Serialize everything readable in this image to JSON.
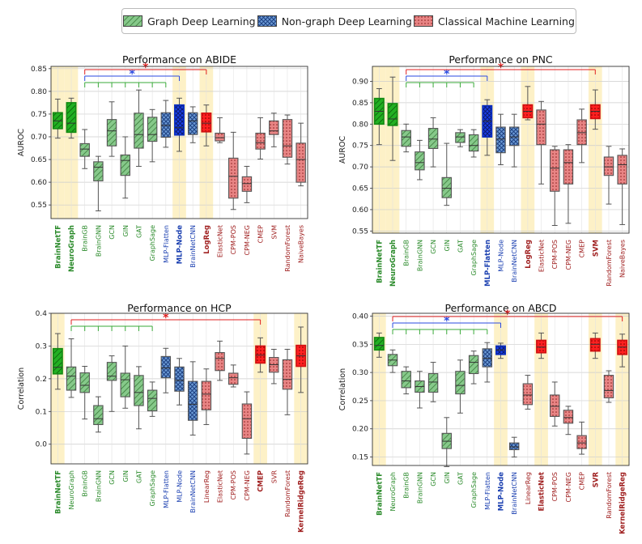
{
  "legend": {
    "graph": "Graph Deep Learning",
    "nongraph": "Non-graph Deep Learning",
    "classical": "Classical Machine Learning"
  },
  "colors": {
    "graph": "#86c98a",
    "graph_hi": "#22b022",
    "nongraph": "#6c9bd6",
    "nongraph_hi": "#1a3fe6",
    "classical": "#e88484",
    "classical_hi": "#ff2020",
    "label_graph": "#2a8a2a",
    "label_nongraph": "#1a3fb0",
    "label_classical": "#a02020",
    "highlight": "#fdf1c7",
    "bracket_green": "#3aaa3a",
    "bracket_blue": "#2a4ae0",
    "bracket_red": "#e02020"
  },
  "chart_data": [
    {
      "type": "box",
      "title": "Performance on ABIDE",
      "ylabel": "AUROC",
      "ylim": [
        0.52,
        0.855
      ],
      "yticks": [
        0.55,
        0.6,
        0.65,
        0.7,
        0.75,
        0.8,
        0.85
      ],
      "tick_format": 2,
      "categories": [
        "BrainNetTF",
        "NeuroGraph",
        "BrainGB",
        "BrainGNN",
        "GCN",
        "GIN",
        "GAT",
        "GraphSage",
        "MLP-Flatten",
        "MLP-Node",
        "BrainNetCNN",
        "LogReg",
        "ElasticNet",
        "CPM-POS",
        "CPM-NEG",
        "CMEP",
        "SVM",
        "RandomForest",
        "NaiveBayes"
      ],
      "groups": [
        "g",
        "g",
        "g",
        "g",
        "g",
        "g",
        "g",
        "g",
        "n",
        "n",
        "n",
        "c",
        "c",
        "c",
        "c",
        "c",
        "c",
        "c",
        "c"
      ],
      "bold": [
        0,
        1,
        9,
        11
      ],
      "highlighted": [
        0,
        1,
        9,
        11
      ],
      "brackets": [
        {
          "from": 2,
          "to": 8,
          "color": "green",
          "level": 0
        },
        {
          "from": 2,
          "to": 9,
          "color": "blue",
          "level": 1,
          "star": "*"
        },
        {
          "from": 2,
          "to": 11,
          "color": "red",
          "level": 2,
          "star": "*"
        }
      ],
      "boxes": [
        {
          "min": 0.697,
          "q1": 0.718,
          "med": 0.735,
          "q3": 0.753,
          "max": 0.783
        },
        {
          "min": 0.697,
          "q1": 0.71,
          "med": 0.73,
          "q3": 0.775,
          "max": 0.785
        },
        {
          "min": 0.63,
          "q1": 0.657,
          "med": 0.673,
          "q3": 0.685,
          "max": 0.716
        },
        {
          "min": 0.537,
          "q1": 0.603,
          "med": 0.633,
          "q3": 0.645,
          "max": 0.657
        },
        {
          "min": 0.657,
          "q1": 0.68,
          "med": 0.713,
          "q3": 0.738,
          "max": 0.777
        },
        {
          "min": 0.565,
          "q1": 0.615,
          "med": 0.648,
          "q3": 0.66,
          "max": 0.7
        },
        {
          "min": 0.635,
          "q1": 0.675,
          "med": 0.705,
          "q3": 0.752,
          "max": 0.803
        },
        {
          "min": 0.645,
          "q1": 0.69,
          "med": 0.705,
          "q3": 0.743,
          "max": 0.76
        },
        {
          "min": 0.677,
          "q1": 0.699,
          "med": 0.725,
          "q3": 0.753,
          "max": 0.78
        },
        {
          "min": 0.668,
          "q1": 0.704,
          "med": 0.72,
          "q3": 0.77,
          "max": 0.785
        },
        {
          "min": 0.687,
          "q1": 0.705,
          "med": 0.735,
          "q3": 0.753,
          "max": 0.766
        },
        {
          "min": 0.68,
          "q1": 0.711,
          "med": 0.73,
          "q3": 0.752,
          "max": 0.77
        },
        {
          "min": 0.687,
          "q1": 0.691,
          "med": 0.698,
          "q3": 0.708,
          "max": 0.742
        },
        {
          "min": 0.54,
          "q1": 0.565,
          "med": 0.613,
          "q3": 0.653,
          "max": 0.71
        },
        {
          "min": 0.555,
          "q1": 0.58,
          "med": 0.597,
          "q3": 0.612,
          "max": 0.635
        },
        {
          "min": 0.651,
          "q1": 0.673,
          "med": 0.687,
          "q3": 0.708,
          "max": 0.742
        },
        {
          "min": 0.678,
          "q1": 0.705,
          "med": 0.713,
          "q3": 0.735,
          "max": 0.752
        },
        {
          "min": 0.64,
          "q1": 0.655,
          "med": 0.68,
          "q3": 0.738,
          "max": 0.748
        },
        {
          "min": 0.592,
          "q1": 0.6,
          "med": 0.65,
          "q3": 0.686,
          "max": 0.73
        }
      ]
    },
    {
      "type": "box",
      "title": "Performance on PNC",
      "ylabel": "AUROC",
      "ylim": [
        0.545,
        0.935
      ],
      "yticks": [
        0.55,
        0.6,
        0.65,
        0.7,
        0.75,
        0.8,
        0.85,
        0.9
      ],
      "tick_format": 2,
      "categories": [
        "BrainNetTF",
        "NeuroGraph",
        "BrainGB",
        "BrainGNN",
        "GCN",
        "GIN",
        "GAT",
        "GraphSage",
        "MLP-Flatten",
        "MLP-Node",
        "BrainNetCNN",
        "LogReg",
        "ElasticNet",
        "CPM-POS",
        "CPM-NEG",
        "CMEP",
        "SVM",
        "RandomForest",
        "NaiveBayes"
      ],
      "groups": [
        "g",
        "g",
        "g",
        "g",
        "g",
        "g",
        "g",
        "g",
        "n",
        "n",
        "n",
        "c",
        "c",
        "c",
        "c",
        "c",
        "c",
        "c",
        "c"
      ],
      "bold": [
        0,
        1,
        8,
        11,
        16
      ],
      "highlighted": [
        0,
        1,
        8,
        11,
        16
      ],
      "brackets": [
        {
          "from": 2,
          "to": 7,
          "color": "green",
          "level": 0
        },
        {
          "from": 2,
          "to": 8,
          "color": "blue",
          "level": 1,
          "star": "*"
        },
        {
          "from": 2,
          "to": 16,
          "color": "red",
          "level": 2,
          "star": "*"
        }
      ],
      "boxes": [
        {
          "min": 0.752,
          "q1": 0.8,
          "med": 0.83,
          "q3": 0.86,
          "max": 0.883
        },
        {
          "min": 0.715,
          "q1": 0.797,
          "med": 0.812,
          "q3": 0.848,
          "max": 0.91
        },
        {
          "min": 0.735,
          "q1": 0.748,
          "med": 0.77,
          "q3": 0.785,
          "max": 0.8
        },
        {
          "min": 0.67,
          "q1": 0.693,
          "med": 0.71,
          "q3": 0.735,
          "max": 0.762
        },
        {
          "min": 0.7,
          "q1": 0.743,
          "med": 0.765,
          "q3": 0.79,
          "max": 0.815
        },
        {
          "min": 0.61,
          "q1": 0.628,
          "med": 0.65,
          "q3": 0.675,
          "max": 0.755
        },
        {
          "min": 0.747,
          "q1": 0.757,
          "med": 0.77,
          "q3": 0.78,
          "max": 0.787
        },
        {
          "min": 0.723,
          "q1": 0.737,
          "med": 0.75,
          "q3": 0.775,
          "max": 0.787
        },
        {
          "min": 0.727,
          "q1": 0.77,
          "med": 0.807,
          "q3": 0.843,
          "max": 0.857
        },
        {
          "min": 0.705,
          "q1": 0.733,
          "med": 0.765,
          "q3": 0.793,
          "max": 0.823
        },
        {
          "min": 0.7,
          "q1": 0.75,
          "med": 0.77,
          "q3": 0.793,
          "max": 0.823
        },
        {
          "min": 0.81,
          "q1": 0.815,
          "med": 0.83,
          "q3": 0.845,
          "max": 0.888
        },
        {
          "min": 0.66,
          "q1": 0.752,
          "med": 0.8,
          "q3": 0.833,
          "max": 0.853
        },
        {
          "min": 0.563,
          "q1": 0.643,
          "med": 0.697,
          "q3": 0.74,
          "max": 0.748
        },
        {
          "min": 0.568,
          "q1": 0.66,
          "med": 0.71,
          "q3": 0.74,
          "max": 0.752
        },
        {
          "min": 0.71,
          "q1": 0.752,
          "med": 0.78,
          "q3": 0.81,
          "max": 0.835
        },
        {
          "min": 0.788,
          "q1": 0.813,
          "med": 0.83,
          "q3": 0.845,
          "max": 0.88
        },
        {
          "min": 0.613,
          "q1": 0.68,
          "med": 0.7,
          "q3": 0.723,
          "max": 0.748
        },
        {
          "min": 0.565,
          "q1": 0.66,
          "med": 0.705,
          "q3": 0.727,
          "max": 0.742
        }
      ]
    },
    {
      "type": "box",
      "title": "Performance on HCP",
      "ylabel": "Correlation",
      "ylim": [
        -0.06,
        0.4
      ],
      "yticks": [
        0.0,
        0.1,
        0.2,
        0.3,
        0.4
      ],
      "tick_format": 1,
      "categories": [
        "BrainNetTF",
        "NeuroGraph",
        "BrainGB",
        "BrainGNN",
        "GCN",
        "GIN",
        "GAT",
        "GraphSage",
        "MLP-Flatten",
        "MLP-Node",
        "BrainNetCNN",
        "LinearReg",
        "ElasticNet",
        "CPM-POS",
        "CPM-NEG",
        "CMEP",
        "SVR",
        "RandomForest",
        "KernelRidgeReg"
      ],
      "groups": [
        "g",
        "g",
        "g",
        "g",
        "g",
        "g",
        "g",
        "g",
        "n",
        "n",
        "n",
        "c",
        "c",
        "c",
        "c",
        "c",
        "c",
        "c",
        "c"
      ],
      "bold": [
        0,
        15,
        18
      ],
      "highlighted": [
        0,
        15,
        18
      ],
      "brackets": [
        {
          "from": 1,
          "to": 7,
          "color": "green",
          "level": 0
        },
        {
          "from": 1,
          "to": 15,
          "color": "red",
          "level": 1,
          "star": "*"
        }
      ],
      "boxes": [
        {
          "min": 0.168,
          "q1": 0.215,
          "med": 0.235,
          "q3": 0.292,
          "max": 0.338
        },
        {
          "min": 0.143,
          "q1": 0.165,
          "med": 0.208,
          "q3": 0.236,
          "max": 0.322
        },
        {
          "min": 0.077,
          "q1": 0.158,
          "med": 0.18,
          "q3": 0.218,
          "max": 0.238
        },
        {
          "min": 0.037,
          "q1": 0.06,
          "med": 0.078,
          "q3": 0.118,
          "max": 0.145
        },
        {
          "min": 0.1,
          "q1": 0.195,
          "med": 0.208,
          "q3": 0.25,
          "max": 0.27
        },
        {
          "min": 0.11,
          "q1": 0.145,
          "med": 0.197,
          "q3": 0.217,
          "max": 0.3
        },
        {
          "min": 0.047,
          "q1": 0.118,
          "med": 0.158,
          "q3": 0.21,
          "max": 0.237
        },
        {
          "min": 0.085,
          "q1": 0.102,
          "med": 0.14,
          "q3": 0.165,
          "max": 0.19
        },
        {
          "min": 0.157,
          "q1": 0.203,
          "med": 0.233,
          "q3": 0.268,
          "max": 0.293
        },
        {
          "min": 0.12,
          "q1": 0.162,
          "med": 0.195,
          "q3": 0.236,
          "max": 0.262
        },
        {
          "min": 0.028,
          "q1": 0.073,
          "med": 0.122,
          "q3": 0.192,
          "max": 0.252
        },
        {
          "min": 0.06,
          "q1": 0.105,
          "med": 0.153,
          "q3": 0.192,
          "max": 0.23
        },
        {
          "min": 0.195,
          "q1": 0.225,
          "med": 0.262,
          "q3": 0.28,
          "max": 0.315
        },
        {
          "min": 0.175,
          "q1": 0.183,
          "med": 0.203,
          "q3": 0.217,
          "max": 0.242
        },
        {
          "min": -0.03,
          "q1": 0.018,
          "med": 0.078,
          "q3": 0.123,
          "max": 0.16
        },
        {
          "min": 0.22,
          "q1": 0.248,
          "med": 0.272,
          "q3": 0.3,
          "max": 0.325
        },
        {
          "min": 0.185,
          "q1": 0.22,
          "med": 0.243,
          "q3": 0.265,
          "max": 0.29
        },
        {
          "min": 0.09,
          "q1": 0.168,
          "med": 0.198,
          "q3": 0.258,
          "max": 0.29
        },
        {
          "min": 0.158,
          "q1": 0.238,
          "med": 0.27,
          "q3": 0.302,
          "max": 0.358
        }
      ]
    },
    {
      "type": "box",
      "title": "Performance on ABCD",
      "ylabel": "Correlation",
      "ylim": [
        0.135,
        0.405
      ],
      "yticks": [
        0.15,
        0.2,
        0.25,
        0.3,
        0.35,
        0.4
      ],
      "tick_format": 2,
      "categories": [
        "BrainNetTF",
        "NeuroGraph",
        "BrainGB",
        "BrainGNN",
        "GCN",
        "GIN",
        "GAT",
        "GraphSage",
        "MLP-Flatten",
        "MLP-Node",
        "BrainNetCNN",
        "LinearReg",
        "ElasticNet",
        "CPM-POS",
        "CPM-NEG",
        "CMEP",
        "SVR",
        "RandomForest",
        "KernelRidgeReg"
      ],
      "groups": [
        "g",
        "g",
        "g",
        "g",
        "g",
        "g",
        "g",
        "g",
        "n",
        "n",
        "n",
        "c",
        "c",
        "c",
        "c",
        "c",
        "c",
        "c",
        "c"
      ],
      "bold": [
        0,
        9,
        12,
        16,
        18
      ],
      "highlighted": [
        0,
        9,
        12,
        16,
        18
      ],
      "brackets": [
        {
          "from": 1,
          "to": 8,
          "color": "green",
          "level": 0
        },
        {
          "from": 1,
          "to": 9,
          "color": "blue",
          "level": 1,
          "star": "*"
        },
        {
          "from": 1,
          "to": 18,
          "color": "red",
          "level": 2,
          "star": "*"
        }
      ],
      "boxes": [
        {
          "min": 0.327,
          "q1": 0.34,
          "med": 0.348,
          "q3": 0.362,
          "max": 0.37
        },
        {
          "min": 0.3,
          "q1": 0.312,
          "med": 0.322,
          "q3": 0.332,
          "max": 0.34
        },
        {
          "min": 0.262,
          "q1": 0.273,
          "med": 0.285,
          "q3": 0.302,
          "max": 0.31
        },
        {
          "min": 0.237,
          "q1": 0.265,
          "med": 0.275,
          "q3": 0.285,
          "max": 0.302
        },
        {
          "min": 0.248,
          "q1": 0.265,
          "med": 0.283,
          "q3": 0.298,
          "max": 0.318
        },
        {
          "min": 0.133,
          "q1": 0.165,
          "med": 0.178,
          "q3": 0.192,
          "max": 0.22
        },
        {
          "min": 0.228,
          "q1": 0.262,
          "med": 0.277,
          "q3": 0.302,
          "max": 0.322
        },
        {
          "min": 0.28,
          "q1": 0.298,
          "med": 0.318,
          "q3": 0.33,
          "max": 0.338
        },
        {
          "min": 0.283,
          "q1": 0.31,
          "med": 0.325,
          "q3": 0.342,
          "max": 0.353
        },
        {
          "min": 0.325,
          "q1": 0.332,
          "med": 0.34,
          "q3": 0.347,
          "max": 0.352
        },
        {
          "min": 0.15,
          "q1": 0.163,
          "med": 0.168,
          "q3": 0.175,
          "max": 0.185
        },
        {
          "min": 0.235,
          "q1": 0.243,
          "med": 0.26,
          "q3": 0.28,
          "max": 0.295
        },
        {
          "min": 0.325,
          "q1": 0.335,
          "med": 0.345,
          "q3": 0.357,
          "max": 0.37
        },
        {
          "min": 0.205,
          "q1": 0.222,
          "med": 0.24,
          "q3": 0.26,
          "max": 0.283
        },
        {
          "min": 0.19,
          "q1": 0.21,
          "med": 0.22,
          "q3": 0.233,
          "max": 0.24
        },
        {
          "min": 0.155,
          "q1": 0.165,
          "med": 0.175,
          "q3": 0.188,
          "max": 0.212
        },
        {
          "min": 0.325,
          "q1": 0.338,
          "med": 0.35,
          "q3": 0.36,
          "max": 0.37
        },
        {
          "min": 0.247,
          "q1": 0.255,
          "med": 0.268,
          "q3": 0.295,
          "max": 0.303
        },
        {
          "min": 0.31,
          "q1": 0.332,
          "med": 0.345,
          "q3": 0.357,
          "max": 0.368
        }
      ]
    }
  ]
}
